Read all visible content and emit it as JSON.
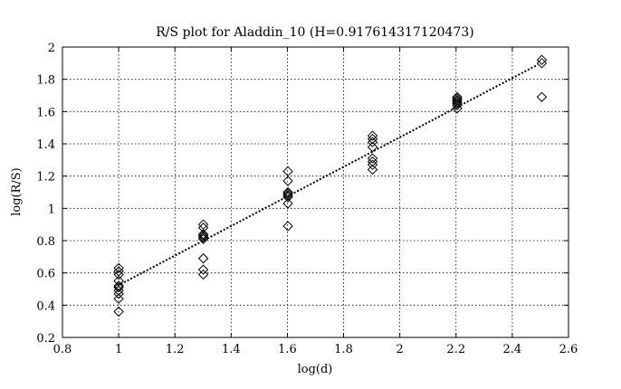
{
  "chart_data": {
    "type": "scatter",
    "title": "R/S plot for Aladdin_10 (H=0.917614317120473)",
    "xlabel": "log(d)",
    "ylabel": "log(R/S)",
    "xlim": [
      0.8,
      2.6
    ],
    "ylim": [
      0.2,
      2.0
    ],
    "xticks": [
      0.8,
      1.0,
      1.2,
      1.4,
      1.6,
      1.8,
      2.0,
      2.2,
      2.4,
      2.6
    ],
    "yticks": [
      0.2,
      0.4,
      0.6,
      0.8,
      1.0,
      1.2,
      1.4,
      1.6,
      1.8,
      2.0
    ],
    "xtick_labels": [
      "0.8",
      "1",
      "1.2",
      "1.4",
      "1.6",
      "1.8",
      "2",
      "2.2",
      "2.4",
      "2.6"
    ],
    "ytick_labels": [
      "0.2",
      "0.4",
      "0.6",
      "0.8",
      "1",
      "1.2",
      "1.4",
      "1.6",
      "1.8",
      "2"
    ],
    "grid": true,
    "marker": "diamond",
    "points": [
      {
        "x": 1.0,
        "y": 0.36
      },
      {
        "x": 1.0,
        "y": 0.44
      },
      {
        "x": 1.0,
        "y": 0.47
      },
      {
        "x": 1.0,
        "y": 0.49
      },
      {
        "x": 1.0,
        "y": 0.51
      },
      {
        "x": 1.0,
        "y": 0.52
      },
      {
        "x": 1.0,
        "y": 0.55
      },
      {
        "x": 1.0,
        "y": 0.59
      },
      {
        "x": 1.0,
        "y": 0.61
      },
      {
        "x": 1.0,
        "y": 0.63
      },
      {
        "x": 1.301,
        "y": 0.59
      },
      {
        "x": 1.301,
        "y": 0.62
      },
      {
        "x": 1.301,
        "y": 0.69
      },
      {
        "x": 1.301,
        "y": 0.81
      },
      {
        "x": 1.301,
        "y": 0.82
      },
      {
        "x": 1.301,
        "y": 0.83
      },
      {
        "x": 1.301,
        "y": 0.84
      },
      {
        "x": 1.301,
        "y": 0.88
      },
      {
        "x": 1.301,
        "y": 0.9
      },
      {
        "x": 1.602,
        "y": 0.89
      },
      {
        "x": 1.602,
        "y": 1.03
      },
      {
        "x": 1.602,
        "y": 1.07
      },
      {
        "x": 1.602,
        "y": 1.08
      },
      {
        "x": 1.602,
        "y": 1.09
      },
      {
        "x": 1.602,
        "y": 1.1
      },
      {
        "x": 1.602,
        "y": 1.17
      },
      {
        "x": 1.602,
        "y": 1.23
      },
      {
        "x": 1.903,
        "y": 1.24
      },
      {
        "x": 1.903,
        "y": 1.27
      },
      {
        "x": 1.903,
        "y": 1.29
      },
      {
        "x": 1.903,
        "y": 1.31
      },
      {
        "x": 1.903,
        "y": 1.38
      },
      {
        "x": 1.903,
        "y": 1.41
      },
      {
        "x": 1.903,
        "y": 1.43
      },
      {
        "x": 1.903,
        "y": 1.45
      },
      {
        "x": 2.204,
        "y": 1.62
      },
      {
        "x": 2.204,
        "y": 1.64
      },
      {
        "x": 2.204,
        "y": 1.65
      },
      {
        "x": 2.204,
        "y": 1.66
      },
      {
        "x": 2.204,
        "y": 1.67
      },
      {
        "x": 2.204,
        "y": 1.68
      },
      {
        "x": 2.204,
        "y": 1.69
      },
      {
        "x": 2.505,
        "y": 1.69
      },
      {
        "x": 2.505,
        "y": 1.9
      },
      {
        "x": 2.505,
        "y": 1.92
      }
    ],
    "fit_line": {
      "style": "dotted",
      "start": {
        "x": 0.985,
        "y": 0.51
      },
      "end": {
        "x": 2.49,
        "y": 1.89
      }
    }
  }
}
